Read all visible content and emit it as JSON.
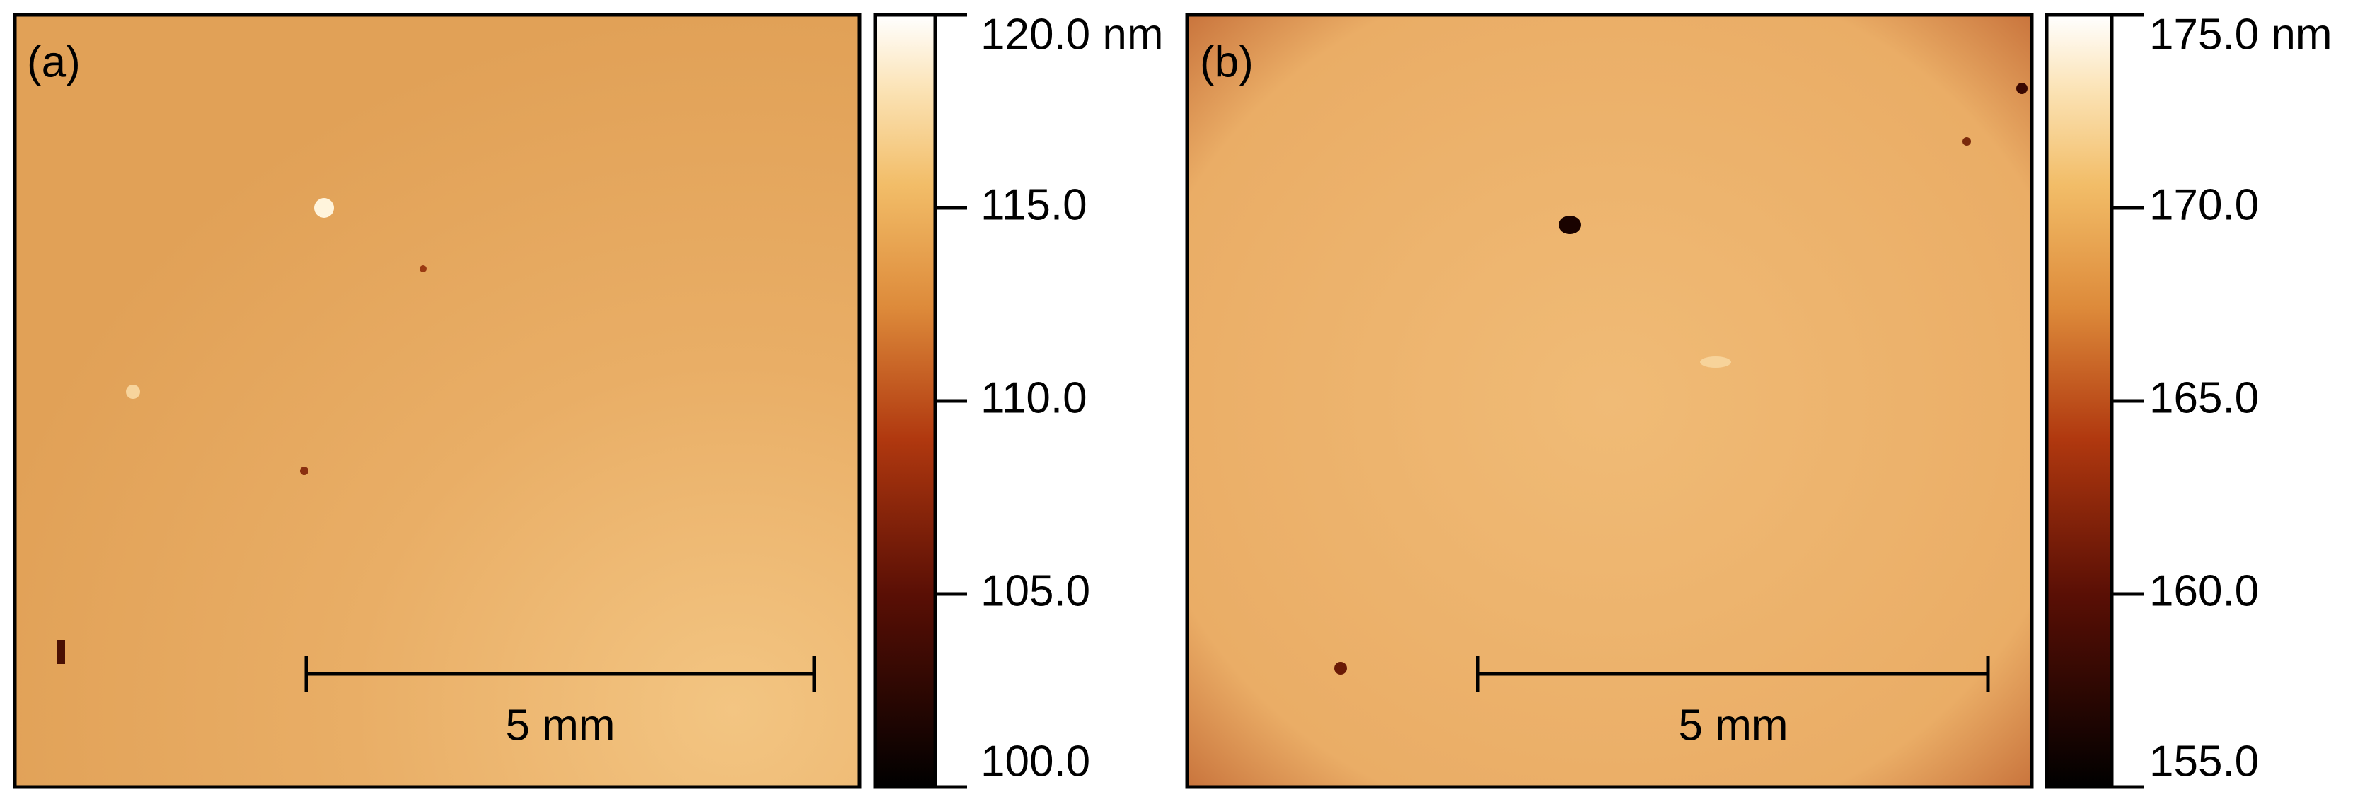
{
  "panels": [
    {
      "label": "(a)",
      "scale_bar": "5 mm",
      "colorbar": {
        "lim": [
          100,
          120
        ],
        "ticks": [
          {
            "value": 100,
            "label": "100.0"
          },
          {
            "value": 105,
            "label": "105.0"
          },
          {
            "value": 110,
            "label": "110.0"
          },
          {
            "value": 115,
            "label": "115.0"
          },
          {
            "value": 120,
            "label": "120.0 nm"
          }
        ]
      }
    },
    {
      "label": "(b)",
      "scale_bar": "5 mm",
      "colorbar": {
        "lim": [
          155,
          175
        ],
        "ticks": [
          {
            "value": 155,
            "label": "155.0"
          },
          {
            "value": 160,
            "label": "160.0"
          },
          {
            "value": 165,
            "label": "165.0"
          },
          {
            "value": 170,
            "label": "170.0"
          },
          {
            "value": 175,
            "label": "175.0 nm"
          }
        ]
      }
    }
  ]
}
